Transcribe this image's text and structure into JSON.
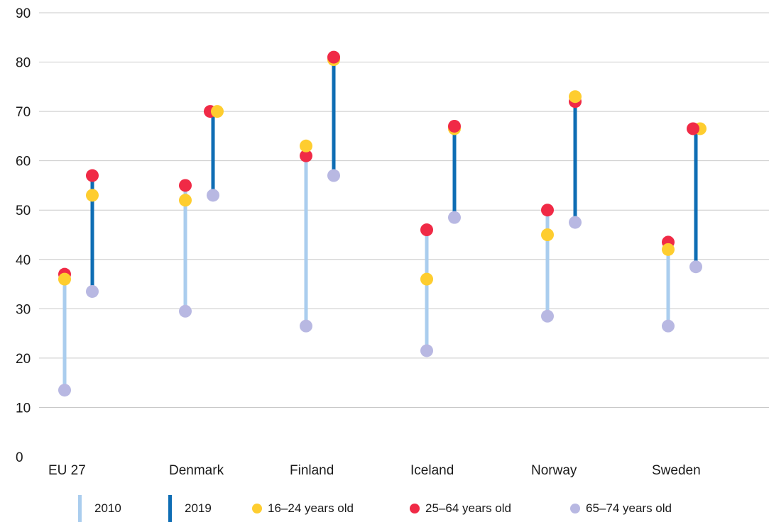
{
  "chart_data": {
    "type": "scatter",
    "title": "",
    "xlabel": "",
    "ylabel": "",
    "ylim": [
      0,
      90
    ],
    "yticks": [
      0,
      10,
      20,
      30,
      40,
      50,
      60,
      70,
      80,
      90
    ],
    "grid": true,
    "legend_position": "bottom",
    "categories": [
      "EU 27",
      "Denmark",
      "Finland",
      "Iceland",
      "Norway",
      "Sweden"
    ],
    "years": [
      {
        "label": "2010",
        "color": "#aacdee"
      },
      {
        "label": "2019",
        "color": "#0e6db4"
      }
    ],
    "series": [
      {
        "name": "16–24 years old",
        "color": "#fecd2f",
        "values_2010": [
          36,
          52,
          63,
          36,
          45,
          42
        ],
        "values_2019": [
          53,
          70,
          80.5,
          66.5,
          73,
          66.5
        ]
      },
      {
        "name": "25–64 years old",
        "color": "#f02a46",
        "values_2010": [
          37,
          55,
          61,
          46,
          50,
          43.5
        ],
        "values_2019": [
          57,
          70,
          81,
          67,
          72,
          66.5
        ]
      },
      {
        "name": "65–74 years old",
        "color": "#b8b8e2",
        "values_2010": [
          13.5,
          29.5,
          26.5,
          21.5,
          28.5,
          26.5
        ],
        "values_2019": [
          33.5,
          53,
          57,
          48.5,
          47.5,
          38.5
        ]
      }
    ],
    "draw_order": [
      2,
      1,
      0
    ],
    "draw_order_overrides": {
      "2019": {
        "2": [
          2,
          0,
          1
        ],
        "3": [
          2,
          0,
          1
        ],
        "5": [
          2,
          0,
          1
        ]
      },
      "2010": {
        "2": [
          2,
          1,
          0
        ]
      }
    }
  }
}
